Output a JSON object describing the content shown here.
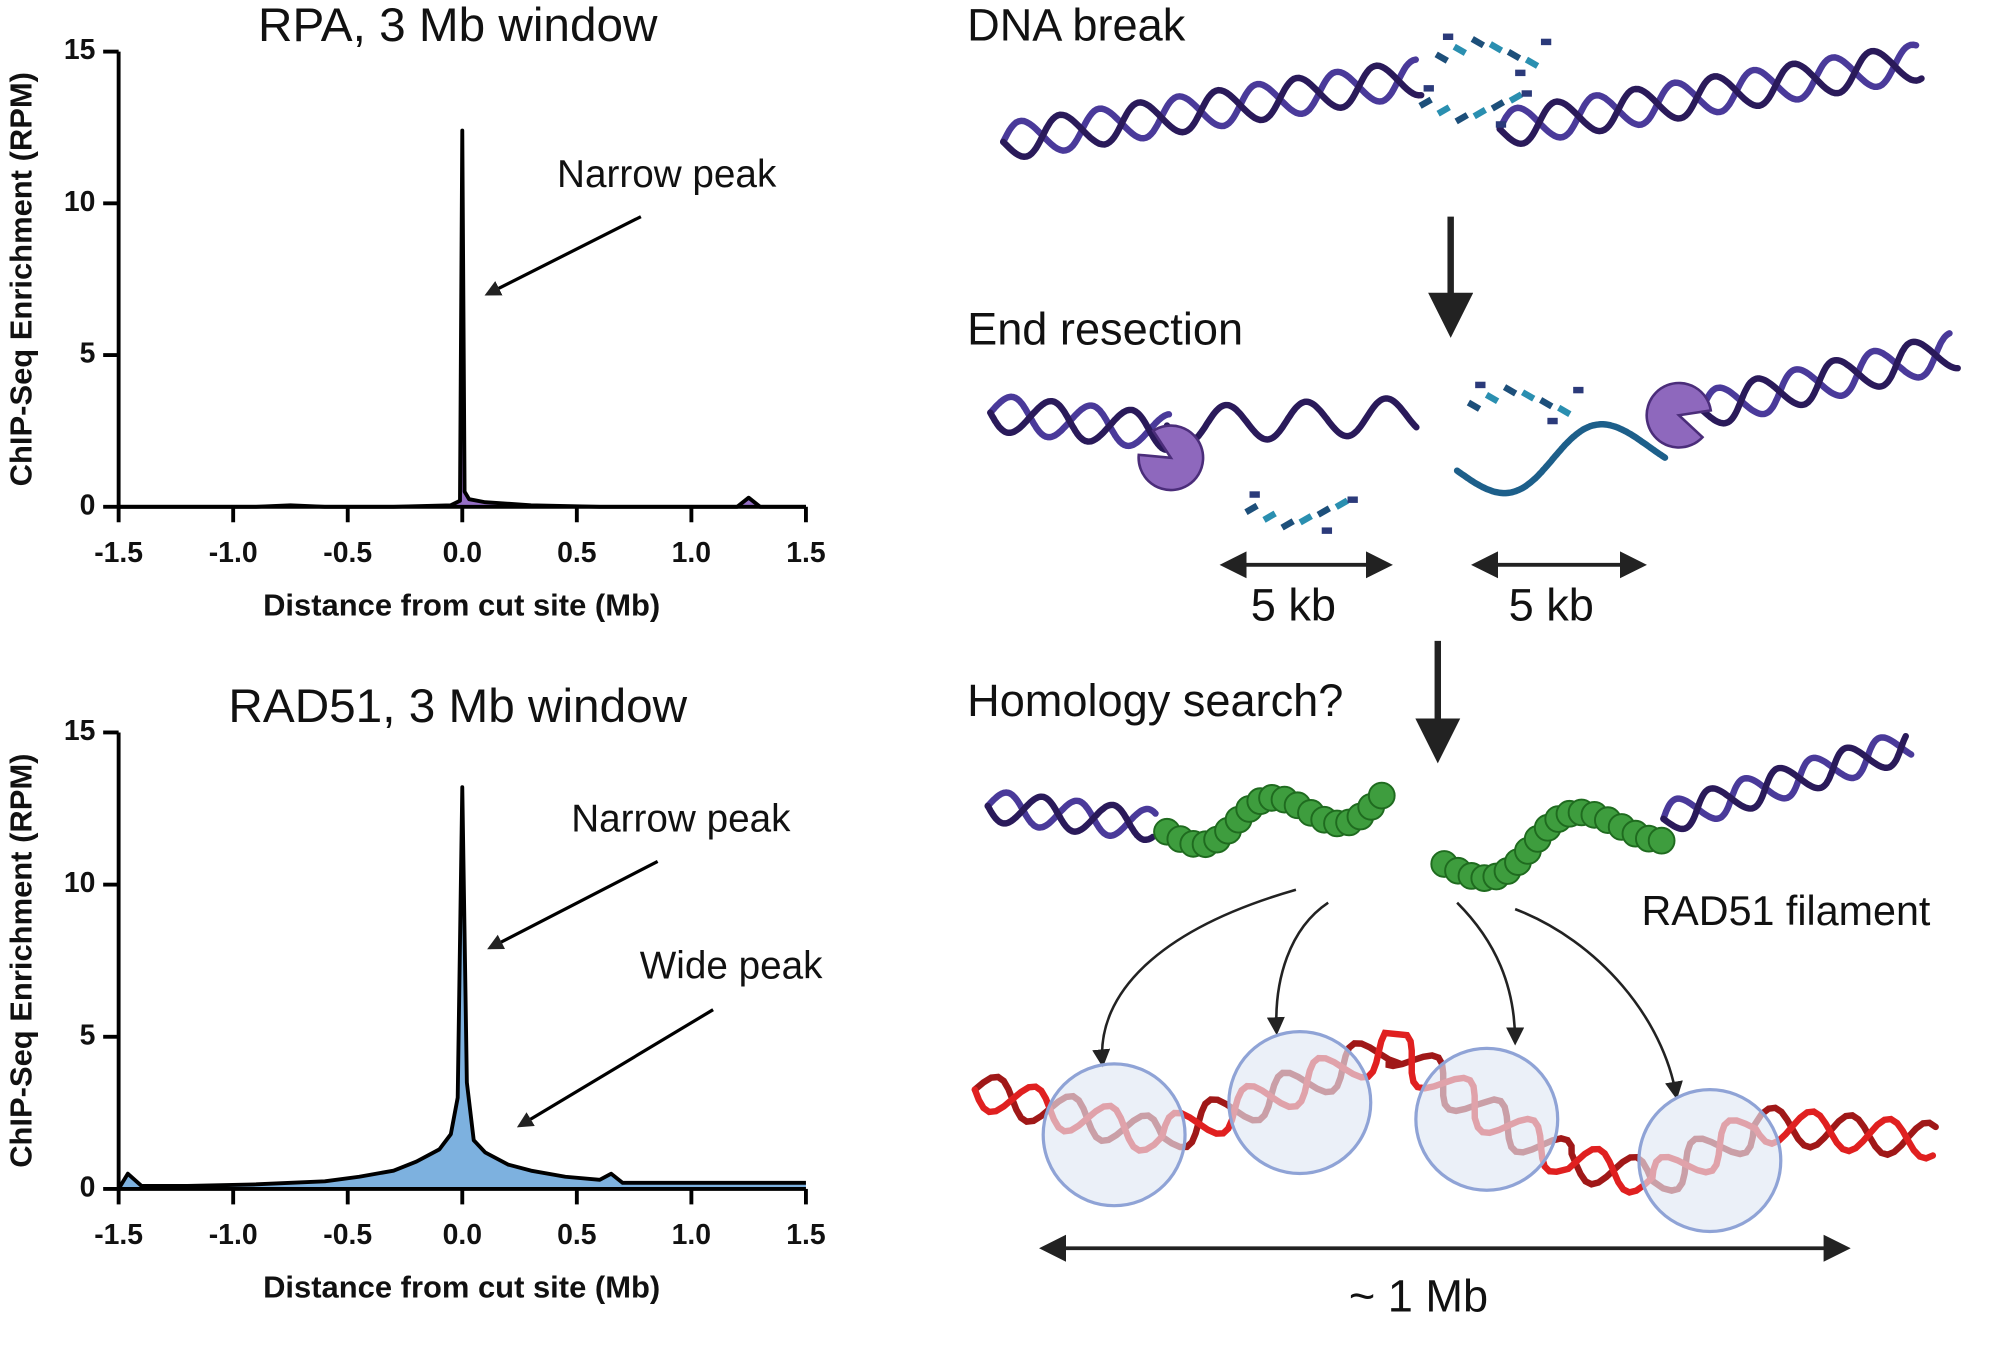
{
  "chart_data": [
    {
      "type": "line",
      "title": "RPA, 3 Mb window",
      "x_label": "Distance from cut site (Mb)",
      "y_label": "ChIP-Seq Enrichment (RPM)",
      "x": [
        -1.5,
        -1.2,
        -0.9,
        -0.75,
        -0.6,
        -0.3,
        -0.05,
        -0.01,
        0,
        0.01,
        0.03,
        0.1,
        0.3,
        0.6,
        0.9,
        1.2,
        1.25,
        1.3,
        1.5
      ],
      "values": [
        0,
        0,
        0,
        0.05,
        0,
        0,
        0.05,
        0.2,
        12.4,
        0.5,
        0.25,
        0.15,
        0.05,
        0,
        0,
        0,
        0.3,
        0,
        0
      ],
      "color": "#000000",
      "fill_color": "#8a5fc0",
      "xlim": [
        -1.5,
        1.5
      ],
      "ylim": [
        0,
        15
      ],
      "xticks": [
        -1.5,
        {
          "value": -1,
          "label": "-1.0"
        },
        -0.5,
        {
          "value": 0,
          "label": "0.0"
        },
        0.5,
        {
          "value": 1,
          "label": "1.0"
        },
        1.5
      ],
      "yticks": [
        0,
        5,
        10,
        15
      ],
      "annotations": [
        {
          "text": "Narrow peak"
        }
      ]
    },
    {
      "type": "line",
      "title": "RAD51, 3 Mb window",
      "x_label": "Distance from cut site (Mb)",
      "y_label": "ChIP-Seq Enrichment (RPM)",
      "x": [
        -1.5,
        -1.46,
        -1.4,
        -1.2,
        -0.9,
        -0.6,
        -0.45,
        -0.3,
        -0.2,
        -0.1,
        -0.05,
        -0.02,
        0,
        0.02,
        0.05,
        0.1,
        0.2,
        0.3,
        0.45,
        0.6,
        0.65,
        0.7,
        0.9,
        1.2,
        1.5
      ],
      "values": [
        0,
        0.5,
        0.1,
        0.1,
        0.15,
        0.25,
        0.4,
        0.6,
        0.9,
        1.3,
        1.8,
        3,
        13.2,
        3.5,
        1.6,
        1.2,
        0.8,
        0.6,
        0.4,
        0.3,
        0.5,
        0.2,
        0.2,
        0.2,
        0.2
      ],
      "color": "#000000",
      "fill_color": "#6fa8dc",
      "xlim": [
        -1.5,
        1.5
      ],
      "ylim": [
        0,
        15
      ],
      "xticks": [
        -1.5,
        {
          "value": -1,
          "label": "-1.0"
        },
        -0.5,
        {
          "value": 0,
          "label": "0.0"
        },
        0.5,
        {
          "value": 1,
          "label": "1.0"
        },
        1.5
      ],
      "yticks": [
        0,
        5,
        10,
        15
      ],
      "annotations": [
        {
          "text": "Narrow peak"
        },
        {
          "text": "Wide peak"
        }
      ]
    }
  ],
  "diagram": {
    "steps": [
      "DNA break",
      "End resection",
      "Homology search?"
    ],
    "resection_lengths": [
      "5 kb",
      "5 kb"
    ],
    "filament_label": "RAD51 filament",
    "search_range": "~ 1 Mb"
  }
}
